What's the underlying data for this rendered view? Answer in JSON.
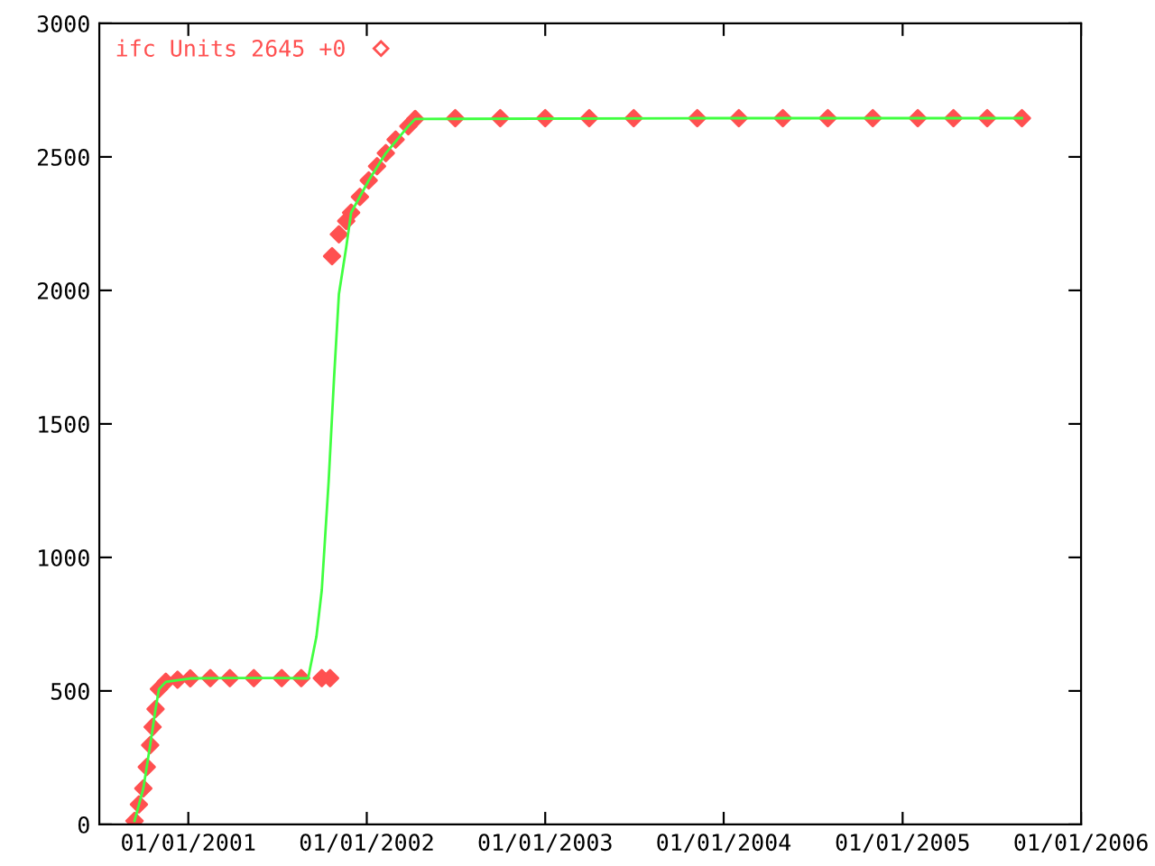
{
  "chart_data": {
    "type": "scatter",
    "legend": "top left",
    "grid": false,
    "xlim": [
      "2000-07-03",
      "2006-01-01"
    ],
    "xticks": [
      {
        "value": "2001-01-01",
        "label": "01/01/2001"
      },
      {
        "value": "2002-01-01",
        "label": "01/01/2002"
      },
      {
        "value": "2003-01-01",
        "label": "01/01/2003"
      },
      {
        "value": "2004-01-01",
        "label": "01/01/2004"
      },
      {
        "value": "2005-01-01",
        "label": "01/01/2005"
      },
      {
        "value": "2006-01-01",
        "label": "01/01/2006"
      }
    ],
    "ylim": [
      0,
      3000
    ],
    "yticks": [
      0,
      500,
      1000,
      1500,
      2000,
      2500,
      3000
    ],
    "series": [
      {
        "type": "line",
        "color": "#40ff40",
        "marker": "none",
        "x": [
          "2000-09-13",
          "2000-10-01",
          "2000-10-15",
          "2000-10-26",
          "2000-11-02",
          "2000-11-16",
          "2001-01-05",
          "2001-03-27",
          "2001-07-11",
          "2001-09-03",
          "2001-09-20",
          "2001-10-01",
          "2001-10-15",
          "2001-10-26",
          "2001-11-05",
          "2001-11-20",
          "2001-11-30",
          "2002-01-05",
          "2002-02-09",
          "2002-03-27",
          "2002-04-10",
          "2003-11-08",
          "2005-06-23",
          "2005-09-02"
        ],
        "values": [
          13,
          135,
          297,
          432,
          507,
          534,
          547,
          548,
          548,
          547,
          703,
          878,
          1284,
          1669,
          1986,
          2162,
          2291,
          2412,
          2514,
          2615,
          2642,
          2645,
          2645,
          2645
        ]
      },
      {
        "name": "ifc Units 2645 +0",
        "color": "#ff5050",
        "marker": "diamond",
        "x": [
          "2000-09-13",
          "2000-09-22",
          "2000-10-01",
          "2000-10-08",
          "2000-10-15",
          "2000-10-20",
          "2000-10-26",
          "2000-11-02",
          "2000-11-16",
          "2000-12-10",
          "2001-01-05",
          "2001-02-15",
          "2001-03-27",
          "2001-05-15",
          "2001-07-11",
          "2001-08-20",
          "2001-10-01",
          "2001-10-18",
          "2001-10-22",
          "2001-11-05",
          "2001-11-20",
          "2001-11-30",
          "2001-12-18",
          "2002-01-05",
          "2002-01-22",
          "2002-02-09",
          "2002-03-01",
          "2002-03-27",
          "2002-04-10",
          "2002-07-01",
          "2002-10-01",
          "2003-01-01",
          "2003-04-01",
          "2003-07-01",
          "2003-11-08",
          "2004-02-01",
          "2004-05-01",
          "2004-08-01",
          "2004-11-01",
          "2005-02-01",
          "2005-04-15",
          "2005-06-23",
          "2005-09-02"
        ],
        "values": [
          13,
          75,
          135,
          215,
          297,
          365,
          432,
          507,
          534,
          542,
          547,
          548,
          548,
          548,
          548,
          548,
          548,
          548,
          2128,
          2210,
          2260,
          2291,
          2350,
          2412,
          2465,
          2514,
          2565,
          2615,
          2642,
          2645,
          2645,
          2645,
          2645,
          2645,
          2645,
          2645,
          2645,
          2645,
          2645,
          2645,
          2645,
          2645,
          2645
        ]
      }
    ]
  }
}
